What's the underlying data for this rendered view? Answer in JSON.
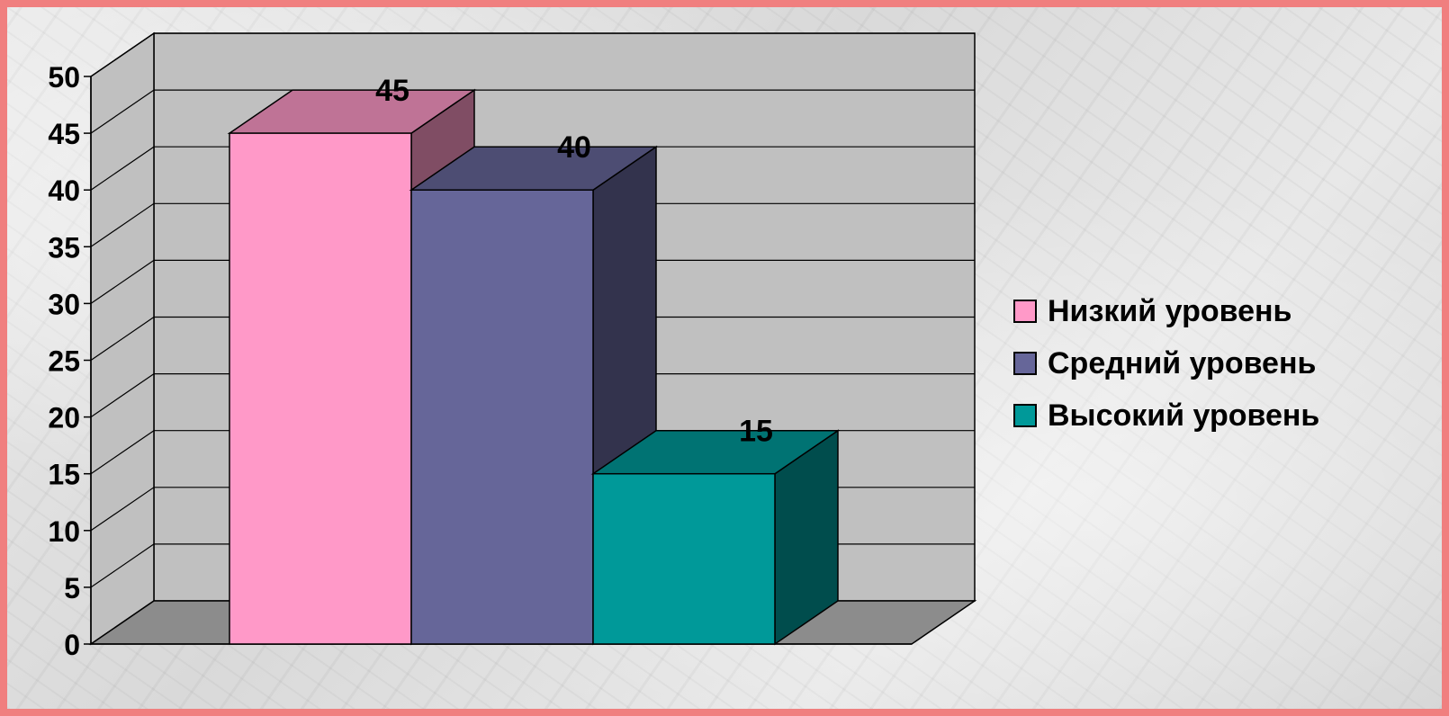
{
  "chart_data": {
    "type": "bar",
    "categories": [
      ""
    ],
    "series": [
      {
        "name": "Низкий уровень",
        "values": [
          45
        ],
        "color": "#ff99c8"
      },
      {
        "name": "Средний уровень",
        "values": [
          40
        ],
        "color": "#666699"
      },
      {
        "name": "Высокий уровень",
        "values": [
          15
        ],
        "color": "#009999"
      }
    ],
    "data_labels": [
      "45",
      "40",
      "15"
    ],
    "ylim": [
      0,
      50
    ],
    "y_ticks": [
      "0",
      "5",
      "10",
      "15",
      "20",
      "25",
      "30",
      "35",
      "40",
      "45",
      "50"
    ],
    "title": "",
    "xlabel": "",
    "ylabel": "",
    "grid": true,
    "three_d": true,
    "legend_position": "right",
    "colors": {
      "wall": "#c0c0c0",
      "floor": "#8c8c8c",
      "frame": "#f07f7f"
    }
  }
}
